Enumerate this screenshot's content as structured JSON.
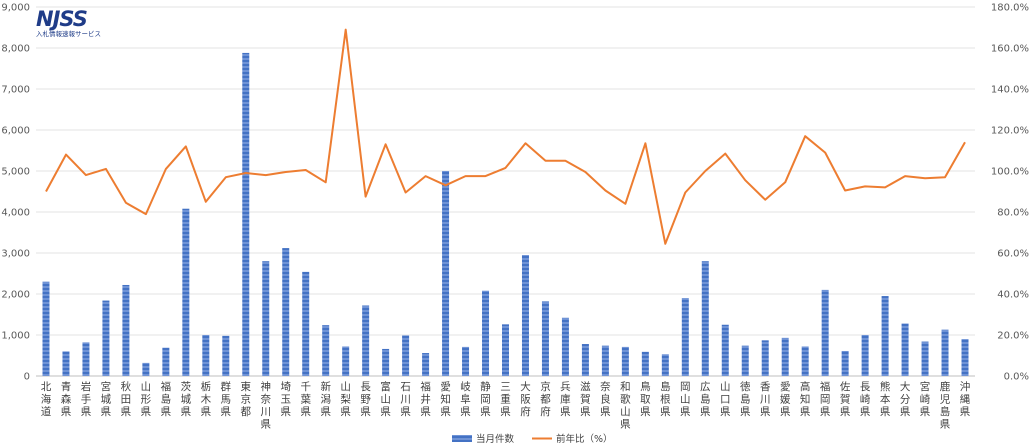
{
  "logo": {
    "mark": "NJSS",
    "subtitle": "入札情報速報サービス"
  },
  "chart_data": {
    "type": "bar+line",
    "categories": [
      "北海道",
      "青森県",
      "岩手県",
      "宮城県",
      "秋田県",
      "山形県",
      "福島県",
      "茨城県",
      "栃木県",
      "群馬県",
      "東京都",
      "神奈川県",
      "埼玉県",
      "千葉県",
      "新潟県",
      "山梨県",
      "長野県",
      "富山県",
      "石川県",
      "福井県",
      "愛知県",
      "岐阜県",
      "静岡県",
      "三重県",
      "大阪府",
      "京都府",
      "兵庫県",
      "滋賀県",
      "奈良県",
      "和歌山県",
      "鳥取県",
      "島根県",
      "岡山県",
      "広島県",
      "山口県",
      "徳島県",
      "香川県",
      "愛媛県",
      "高知県",
      "福岡県",
      "佐賀県",
      "長崎県",
      "熊本県",
      "大分県",
      "宮崎県",
      "鹿児島県",
      "沖縄県"
    ],
    "series": [
      {
        "name": "当月件数",
        "axis": "left",
        "type": "bar",
        "color": "#4472c4",
        "values": [
          2300,
          600,
          820,
          1840,
          2220,
          320,
          690,
          4080,
          1000,
          980,
          7880,
          2800,
          3120,
          2540,
          1240,
          720,
          1720,
          660,
          990,
          560,
          5000,
          710,
          2080,
          1260,
          2950,
          1820,
          1420,
          780,
          740,
          710,
          590,
          530,
          1900,
          2800,
          1250,
          740,
          870,
          930,
          720,
          2100,
          610,
          1000,
          1950,
          1280,
          840,
          1130,
          900
        ]
      },
      {
        "name": "前年比（%）",
        "axis": "right",
        "type": "line",
        "color": "#ed7d31",
        "values": [
          90,
          108,
          98,
          101,
          84.5,
          79,
          101,
          112,
          85,
          97,
          99,
          98,
          99.5,
          100.5,
          94.5,
          169,
          87.5,
          113,
          89.5,
          97.5,
          93,
          97.5,
          97.5,
          101.5,
          113.5,
          105,
          105,
          99.5,
          90.5,
          84,
          113.5,
          64.5,
          89.5,
          100,
          108.5,
          95.5,
          86,
          94.5,
          117,
          109,
          90.5,
          92.5,
          92,
          97.5,
          96.5,
          97,
          114
        ]
      }
    ],
    "y_left": {
      "min": 0,
      "max": 9000,
      "step": 1000,
      "tick_labels": [
        "0",
        "1,000",
        "2,000",
        "3,000",
        "4,000",
        "5,000",
        "6,000",
        "7,000",
        "8,000",
        "9,000"
      ]
    },
    "y_right": {
      "min": 0,
      "max": 180,
      "step": 20,
      "tick_labels": [
        "0.0%",
        "20.0%",
        "40.0%",
        "60.0%",
        "80.0%",
        "100.0%",
        "120.0%",
        "140.0%",
        "160.0%",
        "180.0%"
      ]
    },
    "grid": true,
    "legend_position": "bottom-center"
  }
}
